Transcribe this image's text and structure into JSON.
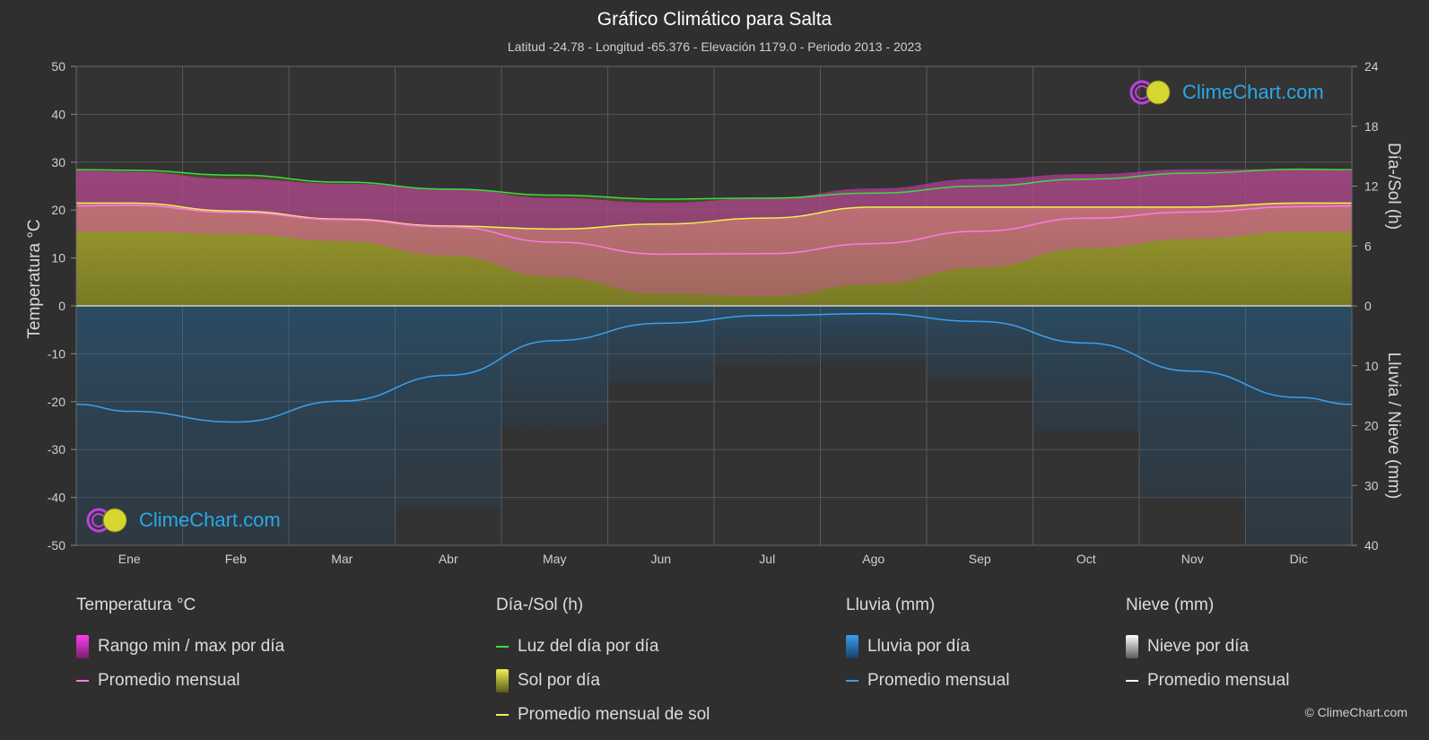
{
  "title": "Gráfico Climático para Salta",
  "subtitle": "Latitud -24.78 - Longitud -65.376 - Elevación 1179.0 - Periodo 2013 - 2023",
  "logo_text": "ClimeChart.com",
  "copyright": "© ClimeChart.com",
  "colors": {
    "background": "#2f2f2f",
    "temp_range": "#e040c0",
    "temp_avg": "#ff7ae6",
    "daylight": "#3ddc3d",
    "sunshine": "#b8b830",
    "sunshine_avg": "#f0f050",
    "rain": "#1f6fa8",
    "rain_avg": "#3aa0ef",
    "snow_avg": "#ffffff"
  },
  "legend": {
    "temperature": {
      "heading": "Temperatura °C",
      "range": "Rango min / max por día",
      "avg": "Promedio mensual"
    },
    "sun": {
      "heading": "Día-/Sol (h)",
      "daylight": "Luz del día por día",
      "sunshine": "Sol por día",
      "sunshine_avg": "Promedio mensual de sol"
    },
    "rain": {
      "heading": "Lluvia (mm)",
      "rain": "Lluvia por día",
      "avg": "Promedio mensual"
    },
    "snow": {
      "heading": "Nieve (mm)",
      "snow": "Nieve por día",
      "avg": "Promedio mensual"
    }
  },
  "chart_data": {
    "type": "line",
    "categories": [
      "Ene",
      "Feb",
      "Mar",
      "Abr",
      "May",
      "Jun",
      "Jul",
      "Ago",
      "Sep",
      "Oct",
      "Nov",
      "Dic"
    ],
    "axes": {
      "left": {
        "label": "Temperatura °C",
        "min": -50,
        "max": 50,
        "ticks": [
          50,
          40,
          30,
          20,
          10,
          0,
          -10,
          -20,
          -30,
          -40,
          -50
        ]
      },
      "right_top": {
        "label": "Día-/Sol (h)",
        "min": 0,
        "max": 24,
        "ticks": [
          24,
          18,
          12,
          6,
          0
        ]
      },
      "right_bottom": {
        "label": "Lluvia / Nieve (mm)",
        "min": 0,
        "max": 40,
        "ticks": [
          10,
          20,
          30,
          40
        ]
      }
    },
    "grid": true,
    "series": [
      {
        "name": "Promedio mensual",
        "group": "Temperatura °C",
        "values": [
          21.0,
          19.5,
          18.0,
          16.5,
          13.3,
          10.8,
          10.9,
          13.0,
          15.6,
          18.3,
          19.6,
          20.7
        ]
      },
      {
        "name": "Rango min / max por día",
        "group": "Temperatura °C",
        "min": [
          15.5,
          15.0,
          13.5,
          10.5,
          6.0,
          2.5,
          2.0,
          4.5,
          8.0,
          12.0,
          14.0,
          15.5
        ],
        "max": [
          28.0,
          26.5,
          25.5,
          24.5,
          22.5,
          21.5,
          22.5,
          24.5,
          26.5,
          27.5,
          28.5,
          28.5
        ]
      },
      {
        "name": "Luz del día por día",
        "group": "Día-/Sol (h)",
        "values": [
          13.6,
          13.1,
          12.4,
          11.7,
          11.1,
          10.7,
          10.8,
          11.3,
          12.0,
          12.7,
          13.3,
          13.7
        ]
      },
      {
        "name": "Sol por día",
        "group": "Día-/Sol (h)",
        "values": [
          10.3,
          9.5,
          8.7,
          8.0,
          7.7,
          8.2,
          8.8,
          9.9,
          9.9,
          9.9,
          9.9,
          10.3
        ]
      },
      {
        "name": "Promedio mensual de sol",
        "group": "Día-/Sol (h)",
        "values": [
          10.3,
          9.5,
          8.7,
          8.0,
          7.7,
          8.2,
          8.8,
          9.9,
          9.9,
          9.9,
          9.9,
          10.3
        ]
      },
      {
        "name": "Promedio mensual",
        "group": "Lluvia (mm)",
        "values": [
          17.6,
          19.4,
          15.9,
          11.6,
          5.8,
          2.9,
          1.6,
          1.3,
          2.6,
          6.2,
          10.9,
          15.3
        ]
      },
      {
        "name": "Promedio mensual",
        "group": "Nieve (mm)",
        "values": [
          0,
          0,
          0,
          0,
          0,
          0,
          0,
          0,
          0,
          0,
          0,
          0
        ]
      }
    ]
  }
}
